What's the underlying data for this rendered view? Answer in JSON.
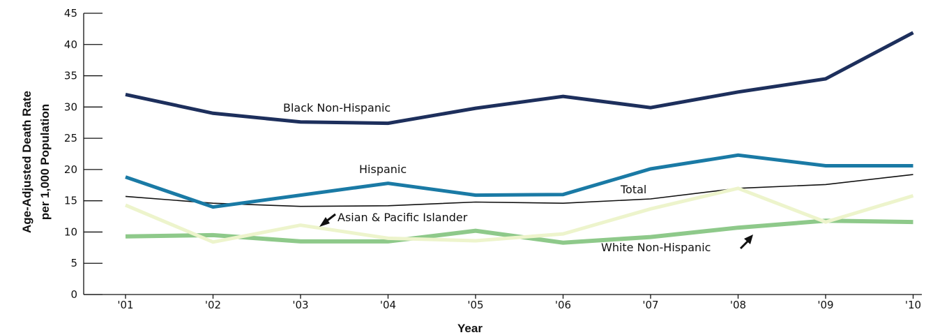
{
  "chart_data": {
    "type": "line",
    "title": "",
    "xlabel": "Year",
    "ylabel_lines": [
      "Age-Adjusted Death Rate",
      "per 1,000 Population"
    ],
    "categories": [
      "'01",
      "'02",
      "'03",
      "'04",
      "'05",
      "'06",
      "'07",
      "'08",
      "'09",
      "'10"
    ],
    "ylim": [
      0,
      45
    ],
    "yticks": [
      "0",
      "5",
      "10",
      "15",
      "20",
      "25",
      "30",
      "35",
      "40",
      "45"
    ],
    "grid": false,
    "legend": "none (direct labels)",
    "series": [
      {
        "name": "Black Non-Hispanic",
        "color": "#1d2f5c",
        "values": [
          32.0,
          29.0,
          27.6,
          27.4,
          29.8,
          31.7,
          29.9,
          32.4,
          34.5,
          41.9
        ]
      },
      {
        "name": "Hispanic",
        "color": "#1a7aa5",
        "values": [
          18.8,
          14.0,
          15.9,
          17.8,
          15.9,
          16.0,
          20.1,
          22.3,
          20.6,
          20.6
        ]
      },
      {
        "name": "Total",
        "color": "#111111",
        "values": [
          15.7,
          14.6,
          14.1,
          14.2,
          14.8,
          14.6,
          15.3,
          17.0,
          17.6,
          19.2
        ]
      },
      {
        "name": "Asian & Pacific Islander",
        "color": "#edf4cc",
        "values": [
          14.3,
          8.4,
          11.1,
          9.0,
          8.6,
          9.7,
          13.7,
          17.0,
          11.6,
          15.8
        ]
      },
      {
        "name": "White Non-Hispanic",
        "color": "#8ec98a",
        "values": [
          9.3,
          9.5,
          8.5,
          8.5,
          10.2,
          8.3,
          9.2,
          10.7,
          11.8,
          11.6
        ]
      }
    ]
  }
}
